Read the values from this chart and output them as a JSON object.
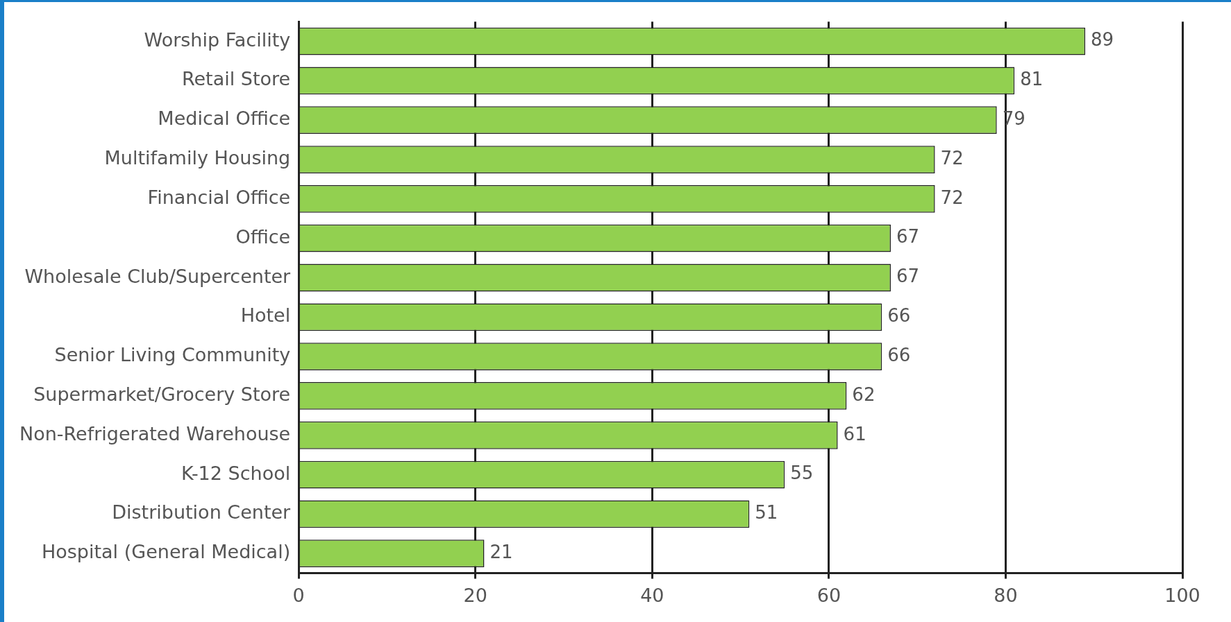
{
  "chart_data": {
    "type": "bar",
    "orientation": "horizontal",
    "categories": [
      "Worship Facility",
      "Retail Store",
      "Medical Office",
      "Multifamily Housing",
      "Financial Office",
      "Office",
      "Wholesale Club/Supercenter",
      "Hotel",
      "Senior Living Community",
      "Supermarket/Grocery Store",
      "Non-Refrigerated Warehouse",
      "K-12 School",
      "Distribution Center",
      "Hospital (General Medical)"
    ],
    "values": [
      89,
      81,
      79,
      72,
      72,
      67,
      67,
      66,
      66,
      62,
      61,
      55,
      51,
      21
    ],
    "color": "#92d050",
    "xlim": [
      0,
      100
    ],
    "xticks": [
      0,
      20,
      40,
      60,
      80,
      100
    ],
    "grid": "x",
    "legend": false,
    "data_labels": true
  }
}
